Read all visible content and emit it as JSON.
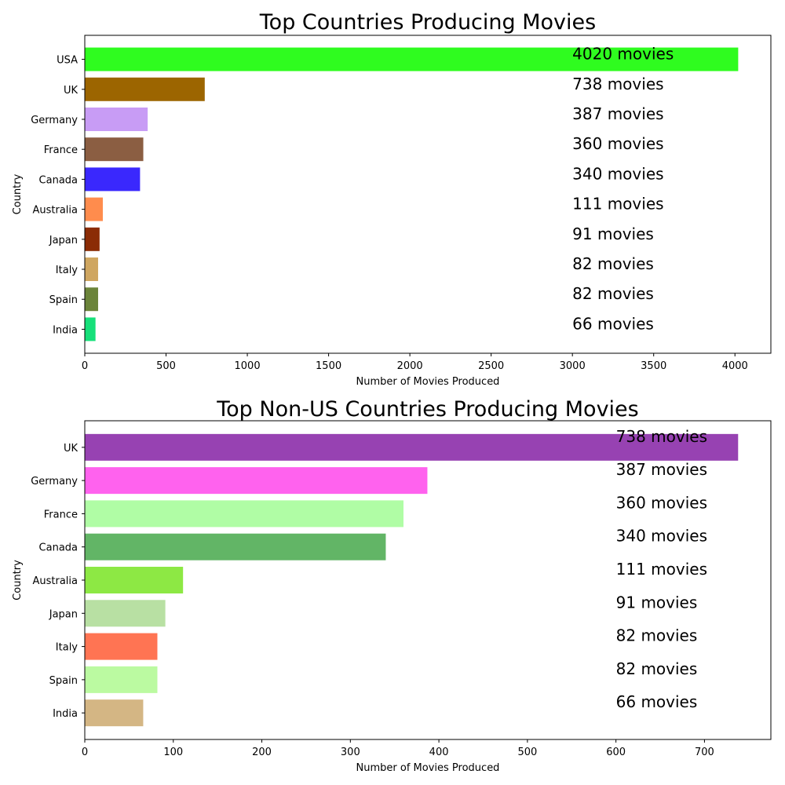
{
  "chart_data": [
    {
      "type": "bar",
      "orientation": "horizontal",
      "title": "Top Countries Producing Movies",
      "xlabel": "Number of Movies Produced",
      "ylabel": "Country",
      "categories": [
        "USA",
        "UK",
        "Germany",
        "France",
        "Canada",
        "Australia",
        "Japan",
        "Italy",
        "Spain",
        "India"
      ],
      "values": [
        4020,
        738,
        387,
        360,
        340,
        111,
        91,
        82,
        82,
        66
      ],
      "value_labels": [
        "4020 movies",
        "738 movies",
        "387 movies",
        "360 movies",
        "340 movies",
        "111 movies",
        "91 movies",
        "82 movies",
        "82 movies",
        "66 movies"
      ],
      "colors": [
        "#2ffc1f",
        "#9c6500",
        "#c89cf5",
        "#8b5e42",
        "#3a28fd",
        "#ff8c4d",
        "#8b2c05",
        "#cfa660",
        "#6b843a",
        "#16e07a"
      ],
      "xticks": [
        0,
        500,
        1000,
        1500,
        2000,
        2500,
        3000,
        3500,
        4000
      ],
      "xlim": [
        0,
        4221
      ],
      "label_x": 3000,
      "grid": false,
      "legend": false
    },
    {
      "type": "bar",
      "orientation": "horizontal",
      "title": "Top Non-US Countries Producing Movies",
      "xlabel": "Number of Movies Produced",
      "ylabel": "Country",
      "categories": [
        "UK",
        "Germany",
        "France",
        "Canada",
        "Australia",
        "Japan",
        "Italy",
        "Spain",
        "India"
      ],
      "values": [
        738,
        387,
        360,
        340,
        111,
        91,
        82,
        82,
        66
      ],
      "value_labels": [
        "738 movies",
        "387 movies",
        "360 movies",
        "340 movies",
        "111 movies",
        "91 movies",
        "82 movies",
        "82 movies",
        "66 movies"
      ],
      "colors": [
        "#9742b2",
        "#ff62ee",
        "#b0fda5",
        "#62b566",
        "#8de844",
        "#b8e0a3",
        "#ff7453",
        "#bbfaa1",
        "#d4b684"
      ],
      "xticks": [
        0,
        100,
        200,
        300,
        400,
        500,
        600,
        700
      ],
      "xlim": [
        0,
        775
      ],
      "label_x": 600,
      "grid": false,
      "legend": false
    }
  ]
}
